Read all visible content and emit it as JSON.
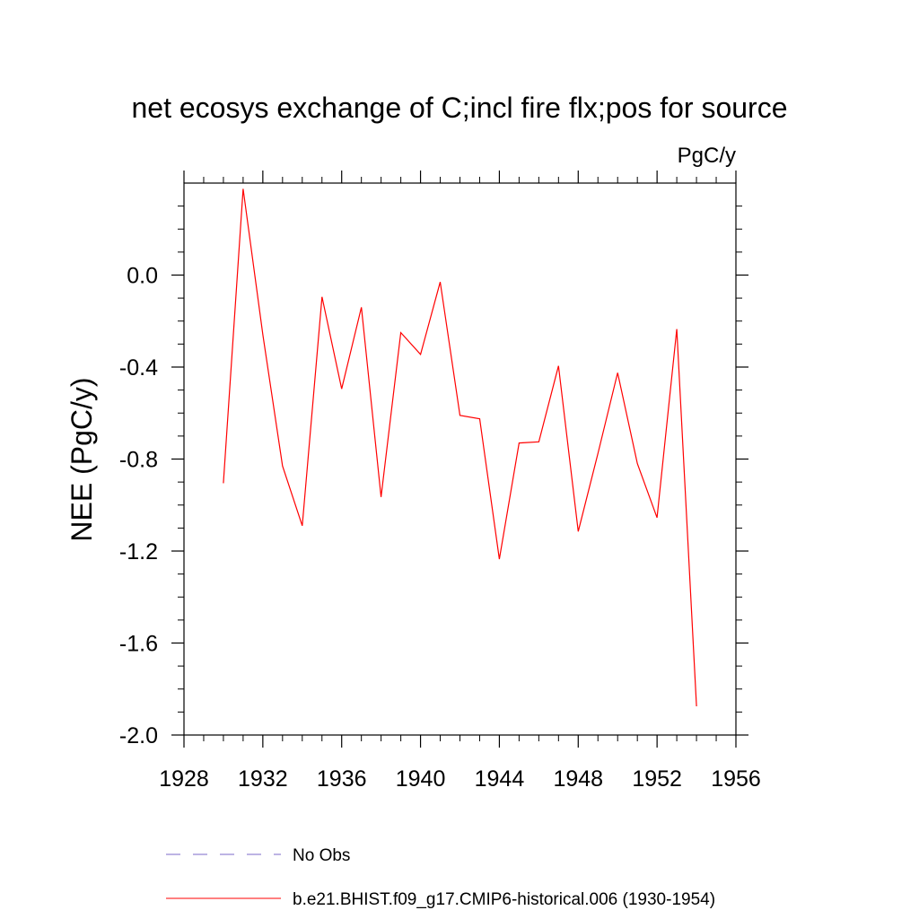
{
  "chart_data": {
    "type": "line",
    "title": "net ecosys exchange of C;incl fire flx;pos for source",
    "units_label": "PgC/y",
    "xlabel": "",
    "ylabel": "NEE  (PgC/y)",
    "xlim": [
      1928,
      1956
    ],
    "ylim": [
      -2.0,
      0.4
    ],
    "x_ticks": [
      1928,
      1932,
      1936,
      1940,
      1944,
      1948,
      1952,
      1956
    ],
    "x_tick_labels": [
      "1928",
      "1932",
      "1936",
      "1940",
      "1944",
      "1948",
      "1952",
      "1956"
    ],
    "y_ticks": [
      0.0,
      -0.4,
      -0.8,
      -1.2,
      -1.6,
      -2.0
    ],
    "y_tick_labels": [
      "0.0",
      "-0.4",
      "-0.8",
      "-1.2",
      "-1.6",
      "-2.0"
    ],
    "grid": false,
    "series": [
      {
        "name": "b.e21.BHIST.f09_g17.CMIP6-historical.006 (1930-1954)",
        "color": "#ff0000",
        "style": "solid",
        "x": [
          1930,
          1931,
          1932,
          1933,
          1934,
          1935,
          1936,
          1937,
          1938,
          1939,
          1940,
          1941,
          1942,
          1943,
          1944,
          1945,
          1946,
          1947,
          1948,
          1949,
          1950,
          1951,
          1952,
          1953,
          1954
        ],
        "y": [
          -0.905,
          0.375,
          -0.26,
          -0.83,
          -1.09,
          -0.095,
          -0.495,
          -0.14,
          -0.965,
          -0.25,
          -0.345,
          -0.03,
          -0.61,
          -0.625,
          -1.235,
          -0.73,
          -0.725,
          -0.395,
          -1.115,
          -0.775,
          -0.425,
          -0.82,
          -1.055,
          -0.235,
          -1.875
        ]
      }
    ],
    "legend": [
      {
        "label": "No Obs",
        "color": "#7b68c8",
        "style": "dashed"
      },
      {
        "label": "b.e21.BHIST.f09_g17.CMIP6-historical.006 (1930-1954)",
        "color": "#ff0000",
        "style": "solid"
      }
    ]
  }
}
